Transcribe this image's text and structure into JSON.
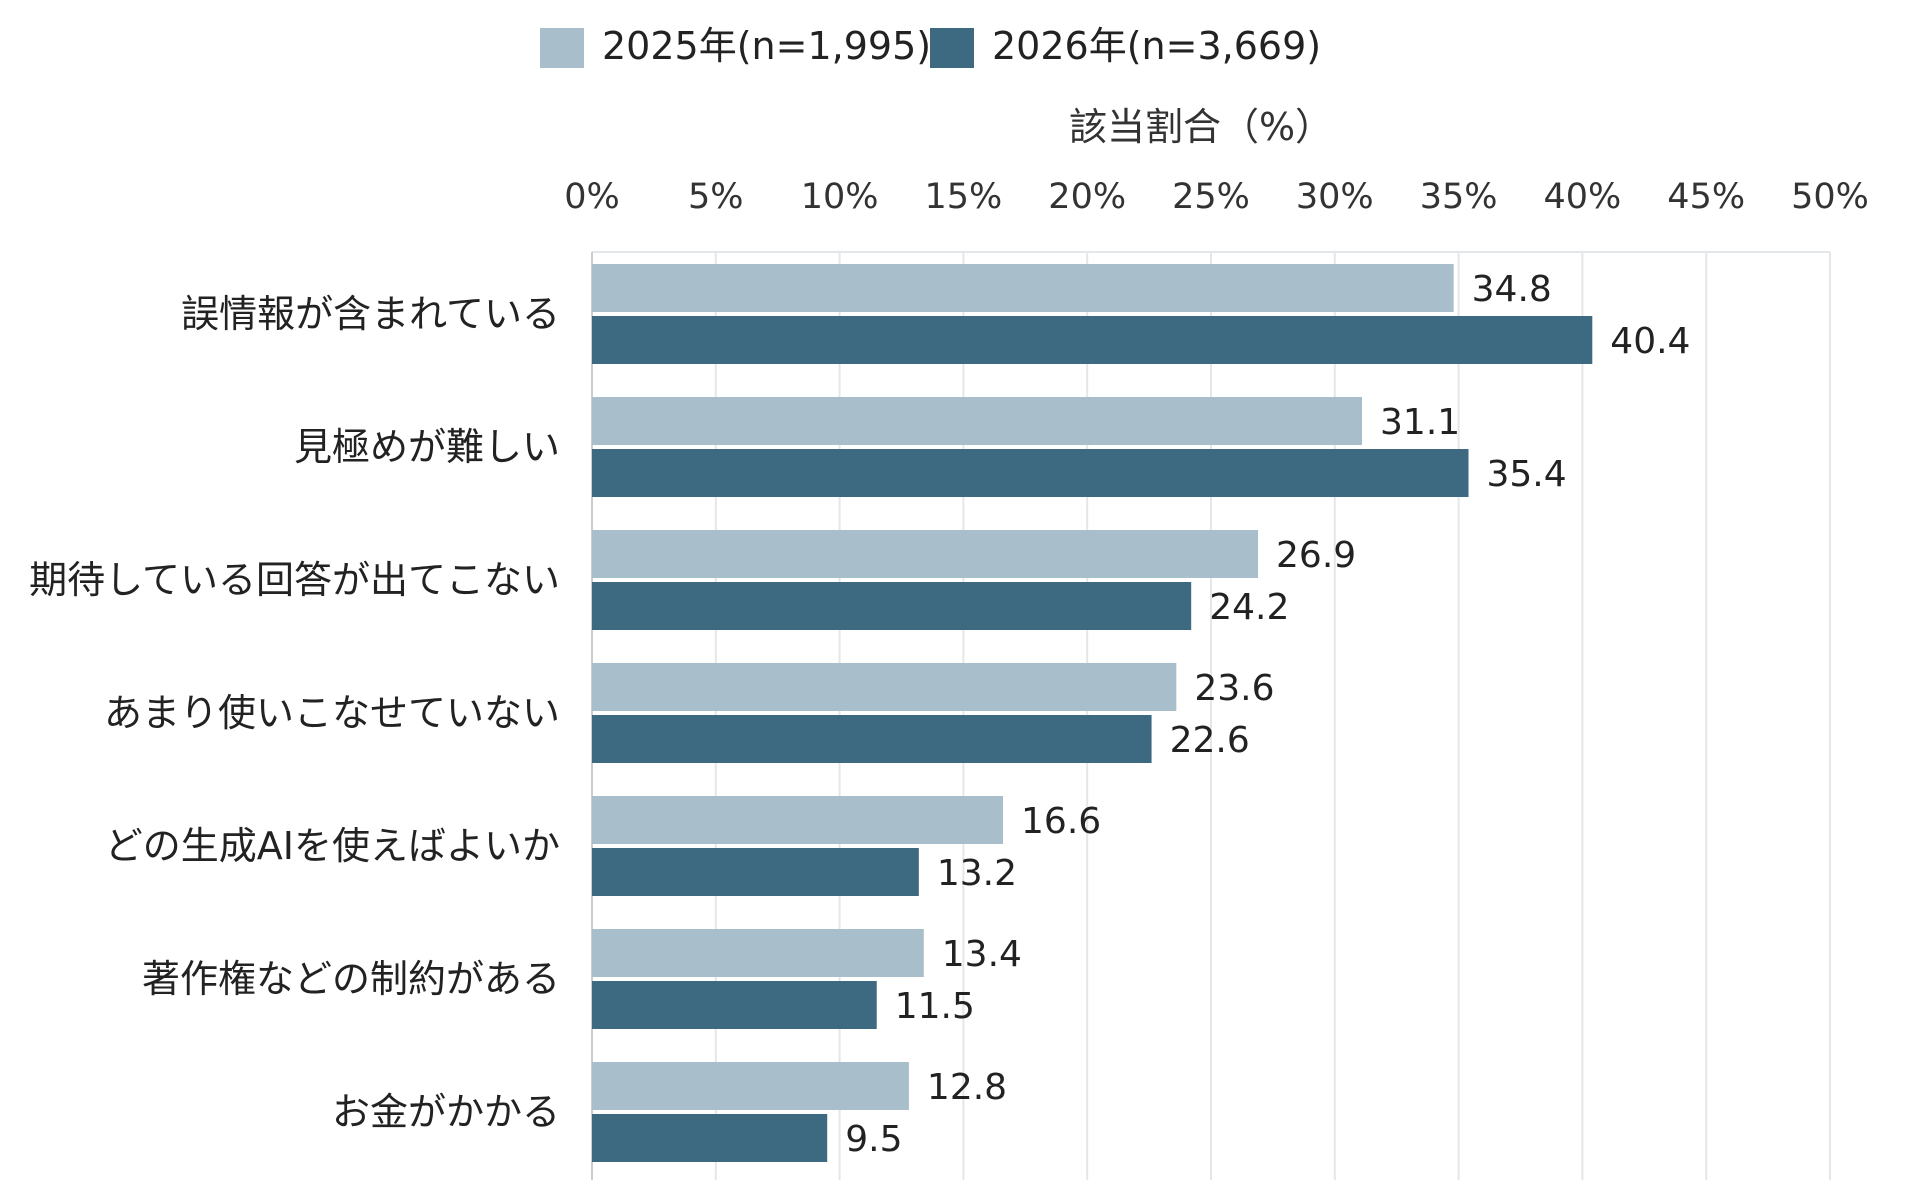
{
  "chart_data": {
    "type": "bar",
    "orientation": "horizontal",
    "xlabel": "該当割合（%）",
    "xlim": [
      0,
      50
    ],
    "xticks": [
      0,
      5,
      10,
      15,
      20,
      25,
      30,
      35,
      40,
      45,
      50
    ],
    "xtick_labels": [
      "0%",
      "5%",
      "10%",
      "15%",
      "20%",
      "25%",
      "30%",
      "35%",
      "40%",
      "45%",
      "50%"
    ],
    "grid": true,
    "legend_position": "top",
    "categories": [
      "誤情報が含まれている",
      "見極めが難しい",
      "期待している回答が出てこない",
      "あまり使いこなせていない",
      "どの生成AIを使えばよいか",
      "著作権などの制約がある",
      "お金がかかる"
    ],
    "series": [
      {
        "name": "2025年(n=1,995)",
        "color": "#a8bfcb",
        "values": [
          34.8,
          31.1,
          26.9,
          23.6,
          16.6,
          13.4,
          12.8
        ],
        "labels": [
          "34.8",
          "31.1",
          "26.9",
          "23.6",
          "16.6",
          "13.4",
          "12.8"
        ]
      },
      {
        "name": "2026年(n=3,669)",
        "color": "#3d6a80",
        "values": [
          40.4,
          35.4,
          24.2,
          22.6,
          13.2,
          11.5,
          9.5
        ],
        "labels": [
          "40.4",
          "35.4",
          "24.2",
          "22.6",
          "13.2",
          "11.5",
          "9.5"
        ]
      }
    ]
  }
}
